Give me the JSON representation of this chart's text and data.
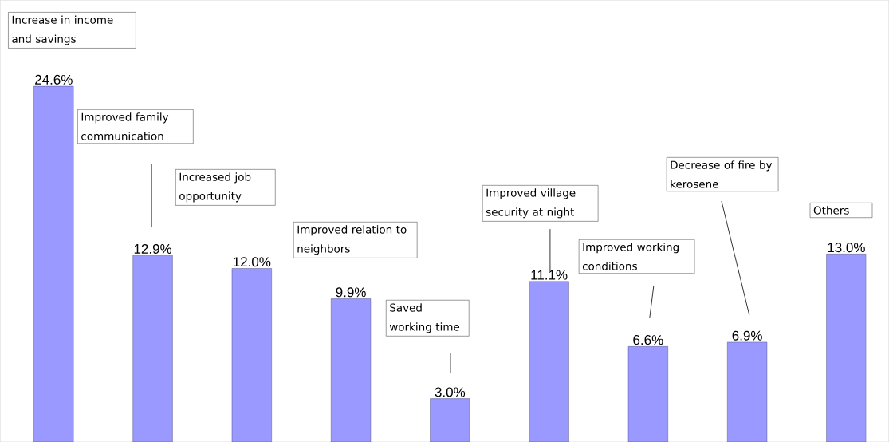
{
  "chart_data": {
    "type": "bar",
    "categories": [
      null,
      null,
      null,
      null,
      null,
      null,
      null,
      null,
      null
    ],
    "values": [
      24.6,
      12.9,
      12.0,
      9.9,
      3.0,
      11.1,
      6.6,
      6.9,
      13.0
    ],
    "value_labels": [
      "24.6%",
      "12.9%",
      "12.0%",
      "9.9%",
      "3.0%",
      "11.1%",
      "6.6%",
      "6.9%",
      "13.0%"
    ],
    "color": "#9999ff",
    "annotations": [
      "Increase in income and savings",
      "Improved family communication",
      "Increased job opportunity",
      "Improved relation to neighbors",
      "Saved working time",
      "Improved village security at night",
      "Improved working conditions",
      "Decrease of fire by kerosene",
      "Others"
    ]
  }
}
